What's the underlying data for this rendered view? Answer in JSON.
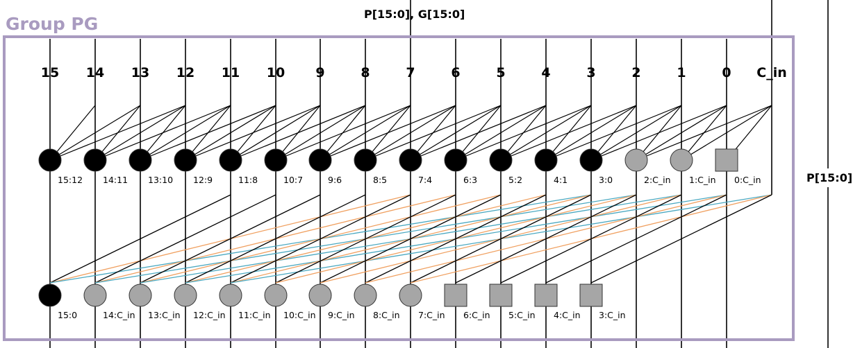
{
  "group_label": "Group PG",
  "top_label": "P[15:0], G[15:0]",
  "side_label": "P[15:0]",
  "columns": [
    "15",
    "14",
    "13",
    "12",
    "11",
    "10",
    "9",
    "8",
    "7",
    "6",
    "5",
    "4",
    "3",
    "2",
    "1",
    "0",
    "C_in"
  ],
  "colors": {
    "box_border": "#a99bc0",
    "black_node": "#000000",
    "gray_node": "#a6a6a6",
    "orange_wire": "#f0a060",
    "teal_wire": "#4aa8c0"
  },
  "level1_nodes": [
    {
      "label": "15:12",
      "shape": "black-circle"
    },
    {
      "label": "14:11",
      "shape": "black-circle"
    },
    {
      "label": "13:10",
      "shape": "black-circle"
    },
    {
      "label": "12:9",
      "shape": "black-circle"
    },
    {
      "label": "11:8",
      "shape": "black-circle"
    },
    {
      "label": "10:7",
      "shape": "black-circle"
    },
    {
      "label": "9:6",
      "shape": "black-circle"
    },
    {
      "label": "8:5",
      "shape": "black-circle"
    },
    {
      "label": "7:4",
      "shape": "black-circle"
    },
    {
      "label": "6:3",
      "shape": "black-circle"
    },
    {
      "label": "5:2",
      "shape": "black-circle"
    },
    {
      "label": "4:1",
      "shape": "black-circle"
    },
    {
      "label": "3:0",
      "shape": "black-circle"
    },
    {
      "label": "2:C_in",
      "shape": "gray-circle"
    },
    {
      "label": "1:C_in",
      "shape": "gray-circle"
    },
    {
      "label": "0:C_in",
      "shape": "gray-square"
    }
  ],
  "level2_nodes": [
    {
      "label": "15:0",
      "shape": "black-circle"
    },
    {
      "label": "14:C_in",
      "shape": "gray-circle"
    },
    {
      "label": "13:C_in",
      "shape": "gray-circle"
    },
    {
      "label": "12:C_in",
      "shape": "gray-circle"
    },
    {
      "label": "11:C_in",
      "shape": "gray-circle"
    },
    {
      "label": "10:C_in",
      "shape": "gray-circle"
    },
    {
      "label": "9:C_in",
      "shape": "gray-circle"
    },
    {
      "label": "8:C_in",
      "shape": "gray-circle"
    },
    {
      "label": "7:C_in",
      "shape": "gray-circle"
    },
    {
      "label": "6:C_in",
      "shape": "gray-square"
    },
    {
      "label": "5:C_in",
      "shape": "gray-square"
    },
    {
      "label": "4:C_in",
      "shape": "gray-square"
    },
    {
      "label": "3:C_in",
      "shape": "gray-square"
    }
  ]
}
